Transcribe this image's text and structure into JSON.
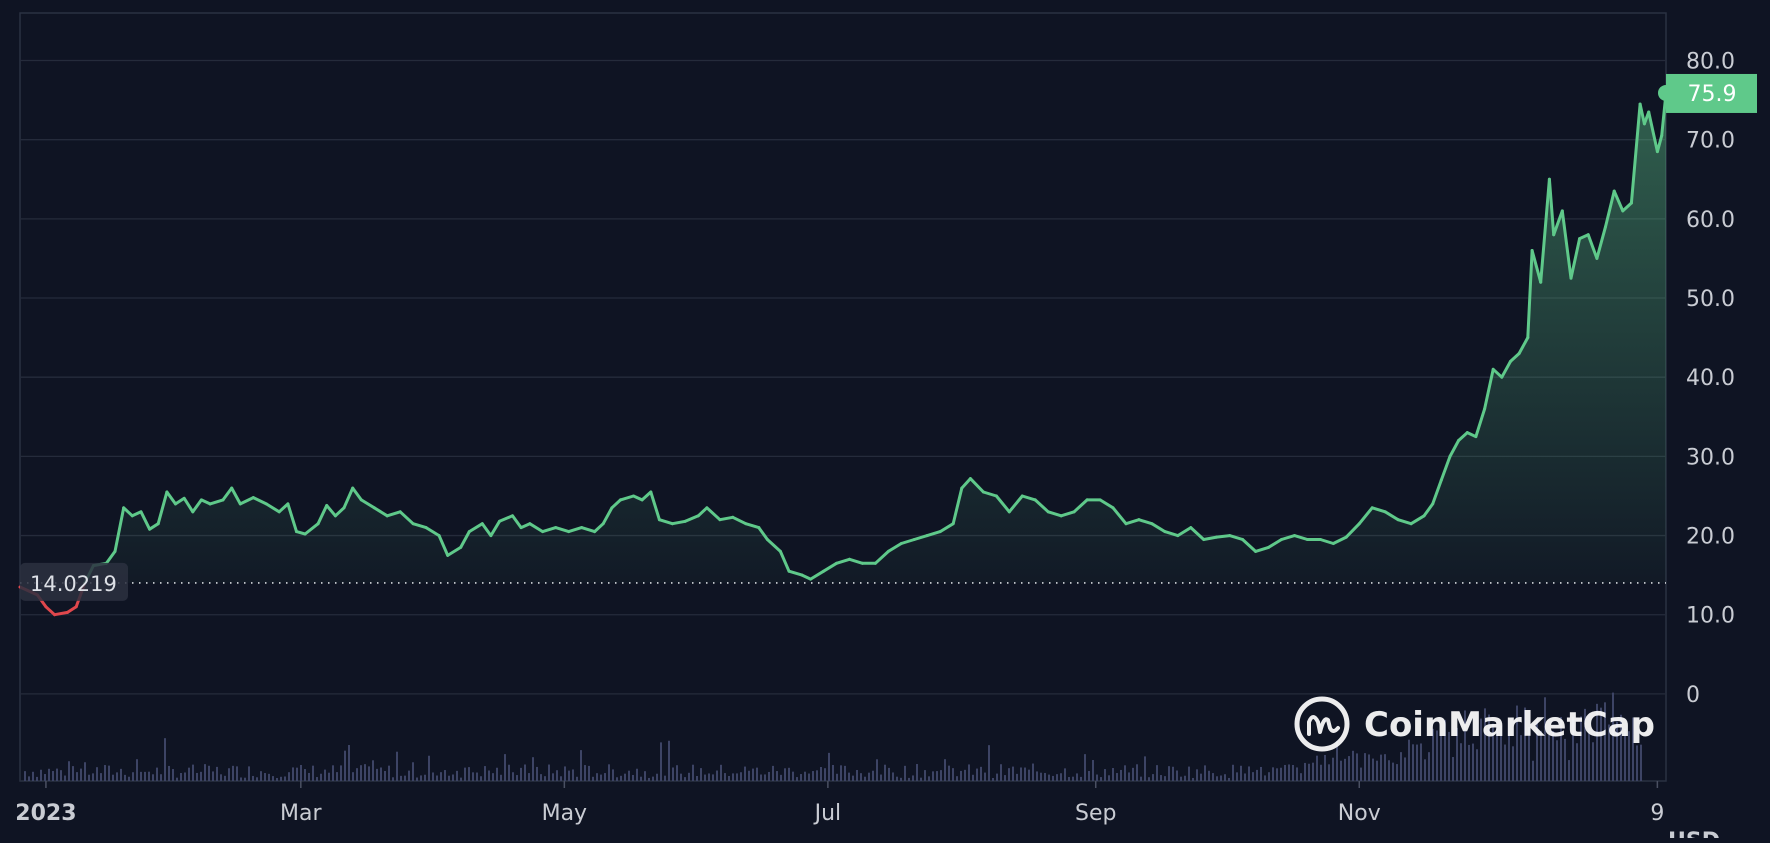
{
  "brand": {
    "name": "CoinMarketCap",
    "logo_icon": "coinmarketcap-logo-icon"
  },
  "currency_label": "USD",
  "colors": {
    "background": "#0f1423",
    "up": "#5fc98a",
    "down": "#e0474c",
    "grid": "#252b3b",
    "axis_text": "#c9ccd3",
    "volume": "#3d4465",
    "badge_text": "#ffffff"
  },
  "chart_data": {
    "type": "line",
    "title": "",
    "xlabel": "",
    "ylabel": "",
    "ylim": [
      -11,
      86
    ],
    "xlim": [
      "2022-12-26",
      "2024-01-11"
    ],
    "y_ticks": [
      "0",
      "10.0",
      "20.0",
      "30.0",
      "40.0",
      "50.0",
      "60.0",
      "70.0",
      "80.0"
    ],
    "y_tick_values": [
      0,
      10,
      20,
      30,
      40,
      50,
      60,
      70,
      80
    ],
    "x_ticks": [
      {
        "label": "2023",
        "date": "2023-01-01",
        "bold": true
      },
      {
        "label": "Mar",
        "date": "2023-03-01"
      },
      {
        "label": "May",
        "date": "2023-05-01"
      },
      {
        "label": "Jul",
        "date": "2023-07-01"
      },
      {
        "label": "Sep",
        "date": "2023-09-01"
      },
      {
        "label": "Nov",
        "date": "2023-11-01"
      },
      {
        "label": "9",
        "date": "2024-01-09"
      }
    ],
    "baseline": {
      "value": 14.0219,
      "label": "14.0219"
    },
    "last_price": {
      "value": 75.9,
      "label": "75.9"
    },
    "series": [
      {
        "points": [
          [
            "2022-12-26",
            13.5
          ],
          [
            "2022-12-30",
            12.5
          ],
          [
            "2023-01-01",
            11.0
          ],
          [
            "2023-01-03",
            10.0
          ],
          [
            "2023-01-06",
            10.3
          ],
          [
            "2023-01-08",
            11.0
          ],
          [
            "2023-01-10",
            14.0
          ],
          [
            "2023-01-12",
            16.2
          ],
          [
            "2023-01-15",
            16.5
          ],
          [
            "2023-01-17",
            18.0
          ],
          [
            "2023-01-19",
            23.5
          ],
          [
            "2023-01-21",
            22.5
          ],
          [
            "2023-01-23",
            23.0
          ],
          [
            "2023-01-25",
            20.8
          ],
          [
            "2023-01-27",
            21.5
          ],
          [
            "2023-01-29",
            25.5
          ],
          [
            "2023-01-31",
            24.0
          ],
          [
            "2023-02-02",
            24.7
          ],
          [
            "2023-02-04",
            23.0
          ],
          [
            "2023-02-06",
            24.5
          ],
          [
            "2023-02-08",
            24.0
          ],
          [
            "2023-02-11",
            24.5
          ],
          [
            "2023-02-13",
            26.0
          ],
          [
            "2023-02-15",
            24.0
          ],
          [
            "2023-02-18",
            24.8
          ],
          [
            "2023-02-21",
            24.0
          ],
          [
            "2023-02-24",
            23.0
          ],
          [
            "2023-02-26",
            24.0
          ],
          [
            "2023-02-28",
            20.5
          ],
          [
            "2023-03-02",
            20.2
          ],
          [
            "2023-03-05",
            21.5
          ],
          [
            "2023-03-07",
            23.8
          ],
          [
            "2023-03-09",
            22.5
          ],
          [
            "2023-03-11",
            23.5
          ],
          [
            "2023-03-13",
            26.0
          ],
          [
            "2023-03-15",
            24.5
          ],
          [
            "2023-03-18",
            23.5
          ],
          [
            "2023-03-21",
            22.5
          ],
          [
            "2023-03-24",
            23.0
          ],
          [
            "2023-03-27",
            21.5
          ],
          [
            "2023-03-30",
            21.0
          ],
          [
            "2023-04-02",
            20.0
          ],
          [
            "2023-04-04",
            17.5
          ],
          [
            "2023-04-07",
            18.5
          ],
          [
            "2023-04-09",
            20.5
          ],
          [
            "2023-04-12",
            21.5
          ],
          [
            "2023-04-14",
            20.0
          ],
          [
            "2023-04-16",
            21.8
          ],
          [
            "2023-04-19",
            22.5
          ],
          [
            "2023-04-21",
            21.0
          ],
          [
            "2023-04-23",
            21.5
          ],
          [
            "2023-04-26",
            20.5
          ],
          [
            "2023-04-29",
            21.0
          ],
          [
            "2023-05-02",
            20.5
          ],
          [
            "2023-05-05",
            21.0
          ],
          [
            "2023-05-08",
            20.5
          ],
          [
            "2023-05-10",
            21.5
          ],
          [
            "2023-05-12",
            23.5
          ],
          [
            "2023-05-14",
            24.5
          ],
          [
            "2023-05-17",
            25.0
          ],
          [
            "2023-05-19",
            24.5
          ],
          [
            "2023-05-21",
            25.5
          ],
          [
            "2023-05-23",
            22.0
          ],
          [
            "2023-05-26",
            21.5
          ],
          [
            "2023-05-29",
            21.8
          ],
          [
            "2023-06-01",
            22.5
          ],
          [
            "2023-06-03",
            23.5
          ],
          [
            "2023-06-06",
            22.0
          ],
          [
            "2023-06-09",
            22.3
          ],
          [
            "2023-06-12",
            21.5
          ],
          [
            "2023-06-15",
            21.0
          ],
          [
            "2023-06-17",
            19.5
          ],
          [
            "2023-06-20",
            18.0
          ],
          [
            "2023-06-22",
            15.5
          ],
          [
            "2023-06-25",
            15.0
          ],
          [
            "2023-06-27",
            14.5
          ],
          [
            "2023-06-30",
            15.5
          ],
          [
            "2023-07-03",
            16.5
          ],
          [
            "2023-07-06",
            17.0
          ],
          [
            "2023-07-09",
            16.5
          ],
          [
            "2023-07-12",
            16.5
          ],
          [
            "2023-07-15",
            18.0
          ],
          [
            "2023-07-18",
            19.0
          ],
          [
            "2023-07-21",
            19.5
          ],
          [
            "2023-07-24",
            20.0
          ],
          [
            "2023-07-27",
            20.5
          ],
          [
            "2023-07-30",
            21.5
          ],
          [
            "2023-08-01",
            26.0
          ],
          [
            "2023-08-03",
            27.2
          ],
          [
            "2023-08-06",
            25.5
          ],
          [
            "2023-08-09",
            25.0
          ],
          [
            "2023-08-12",
            23.0
          ],
          [
            "2023-08-15",
            25.0
          ],
          [
            "2023-08-18",
            24.5
          ],
          [
            "2023-08-21",
            23.0
          ],
          [
            "2023-08-24",
            22.5
          ],
          [
            "2023-08-27",
            23.0
          ],
          [
            "2023-08-30",
            24.5
          ],
          [
            "2023-09-02",
            24.5
          ],
          [
            "2023-09-05",
            23.5
          ],
          [
            "2023-09-08",
            21.5
          ],
          [
            "2023-09-11",
            22.0
          ],
          [
            "2023-09-14",
            21.5
          ],
          [
            "2023-09-17",
            20.5
          ],
          [
            "2023-09-20",
            20.0
          ],
          [
            "2023-09-23",
            21.0
          ],
          [
            "2023-09-26",
            19.5
          ],
          [
            "2023-09-29",
            19.8
          ],
          [
            "2023-10-02",
            20.0
          ],
          [
            "2023-10-05",
            19.5
          ],
          [
            "2023-10-08",
            18.0
          ],
          [
            "2023-10-11",
            18.5
          ],
          [
            "2023-10-14",
            19.5
          ],
          [
            "2023-10-17",
            20.0
          ],
          [
            "2023-10-20",
            19.5
          ],
          [
            "2023-10-23",
            19.5
          ],
          [
            "2023-10-26",
            19.0
          ],
          [
            "2023-10-29",
            19.8
          ],
          [
            "2023-11-01",
            21.5
          ],
          [
            "2023-11-04",
            23.5
          ],
          [
            "2023-11-07",
            23.0
          ],
          [
            "2023-11-10",
            22.0
          ],
          [
            "2023-11-13",
            21.5
          ],
          [
            "2023-11-16",
            22.5
          ],
          [
            "2023-11-18",
            24.0
          ],
          [
            "2023-11-20",
            27.0
          ],
          [
            "2023-11-22",
            30.0
          ],
          [
            "2023-11-24",
            32.0
          ],
          [
            "2023-11-26",
            33.0
          ],
          [
            "2023-11-28",
            32.5
          ],
          [
            "2023-11-30",
            36.0
          ],
          [
            "2023-12-02",
            41.0
          ],
          [
            "2023-12-04",
            40.0
          ],
          [
            "2023-12-06",
            42.0
          ],
          [
            "2023-12-08",
            43.0
          ],
          [
            "2023-12-10",
            45.0
          ],
          [
            "2023-12-11",
            56.0
          ],
          [
            "2023-12-13",
            52.0
          ],
          [
            "2023-12-15",
            65.0
          ],
          [
            "2023-12-16",
            58.0
          ],
          [
            "2023-12-18",
            61.0
          ],
          [
            "2023-12-20",
            52.5
          ],
          [
            "2023-12-22",
            57.5
          ],
          [
            "2023-12-24",
            58.0
          ],
          [
            "2023-12-26",
            55.0
          ],
          [
            "2023-12-28",
            59.0
          ],
          [
            "2023-12-30",
            63.5
          ],
          [
            "2024-01-01",
            61.0
          ],
          [
            "2024-01-03",
            62.0
          ],
          [
            "2024-01-05",
            74.5
          ],
          [
            "2024-01-06",
            72.0
          ],
          [
            "2024-01-07",
            73.5
          ],
          [
            "2024-01-09",
            68.5
          ],
          [
            "2024-01-10",
            70.5
          ],
          [
            "2024-01-11",
            75.9
          ]
        ]
      }
    ]
  }
}
